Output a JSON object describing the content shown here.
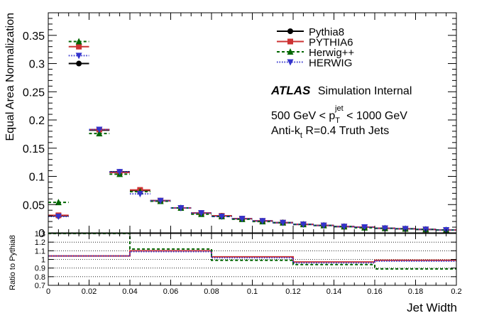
{
  "chart_data": [
    {
      "type": "scatter",
      "ylabel": "Equal Area Normalization",
      "xlim": [
        0,
        0.2
      ],
      "ylim": [
        0,
        0.39
      ],
      "x_bin_edges": [
        0,
        0.01,
        0.02,
        0.03,
        0.04,
        0.05,
        0.06,
        0.07,
        0.08,
        0.09,
        0.1,
        0.11,
        0.12,
        0.13,
        0.14,
        0.15,
        0.16,
        0.17,
        0.18,
        0.19,
        0.2
      ],
      "x_centers": [
        0.005,
        0.015,
        0.025,
        0.035,
        0.045,
        0.055,
        0.065,
        0.075,
        0.085,
        0.095,
        0.105,
        0.115,
        0.125,
        0.135,
        0.145,
        0.155,
        0.165,
        0.175,
        0.185,
        0.195
      ],
      "y_ticks": [
        0,
        0.05,
        0.1,
        0.15,
        0.2,
        0.25,
        0.3,
        0.35
      ],
      "y_tick_labels": [
        "0",
        "0.05",
        "0.1",
        "0.15",
        "0.2",
        "0.25",
        "0.3",
        "0.35"
      ],
      "legend_position": "top-right",
      "series": [
        {
          "name": "Pythia8",
          "color": "#000000",
          "marker": "circle",
          "line": "solid",
          "values": [
            0.03,
            0.3,
            0.182,
            0.108,
            0.075,
            0.057,
            0.044,
            0.035,
            0.03,
            0.025,
            0.021,
            0.018,
            0.015,
            0.013,
            0.011,
            0.01,
            0.008,
            0.007,
            0.006,
            0.005
          ]
        },
        {
          "name": "PYTHIA6",
          "color": "#cc3333",
          "marker": "square",
          "line": "solid",
          "values": [
            0.031,
            0.33,
            0.183,
            0.107,
            0.076,
            0.057,
            0.044,
            0.035,
            0.03,
            0.025,
            0.021,
            0.018,
            0.015,
            0.013,
            0.011,
            0.01,
            0.008,
            0.007,
            0.006,
            0.005
          ]
        },
        {
          "name": "Herwig++",
          "color": "#006600",
          "marker": "triangle-up",
          "line": "dashed",
          "values": [
            0.054,
            0.339,
            0.176,
            0.104,
            0.073,
            0.056,
            0.044,
            0.033,
            0.029,
            0.024,
            0.02,
            0.018,
            0.015,
            0.013,
            0.011,
            0.009,
            0.008,
            0.007,
            0.006,
            0.005
          ]
        },
        {
          "name": "HERWIG",
          "color": "#3333cc",
          "marker": "triangle-down",
          "line": "dotted",
          "values": [
            0.029,
            0.314,
            0.183,
            0.108,
            0.069,
            0.057,
            0.044,
            0.035,
            0.029,
            0.025,
            0.021,
            0.018,
            0.015,
            0.013,
            0.011,
            0.01,
            0.008,
            0.007,
            0.006,
            0.005
          ]
        }
      ],
      "annotations": {
        "atlas": "ATLAS",
        "atlas_suffix": "Simulation Internal",
        "range_prefix": "500 GeV < p",
        "range_sub": "T",
        "range_sup": "jet",
        "range_suffix": " < 1000 GeV",
        "algo_prefix": "Anti-k",
        "algo_sub": "t",
        "algo_suffix": " R=0.4 Truth Jets"
      }
    },
    {
      "type": "line",
      "ylabel": "Ratio to Pythia8",
      "xlabel": "Jet Width",
      "xlim": [
        0,
        0.2
      ],
      "ylim": [
        0.7,
        1.3
      ],
      "x_ticks": [
        0,
        0.02,
        0.04,
        0.06,
        0.08,
        0.1,
        0.12,
        0.14,
        0.16,
        0.18,
        0.2
      ],
      "x_tick_labels": [
        "0",
        "0.02",
        "0.04",
        "0.06",
        "0.08",
        "0.1",
        "0.12",
        "0.14",
        "0.16",
        "0.18",
        "0.2"
      ],
      "y_ticks": [
        0.7,
        0.8,
        0.9,
        1,
        1.1,
        1.2,
        1.3
      ],
      "y_tick_labels": [
        "0.7",
        "0.8",
        "0.9",
        "1",
        "1.1",
        "1.2",
        "1.3"
      ],
      "grid": "horizontal dotted",
      "bin_edges": [
        0,
        0.04,
        0.08,
        0.12,
        0.16,
        0.2
      ],
      "series": [
        {
          "name": "PYTHIA6",
          "color": "#cc3333",
          "line": "solid",
          "values": [
            1.04,
            1.1,
            1.03,
            0.97,
            0.99
          ]
        },
        {
          "name": "Herwig++",
          "color": "#006600",
          "line": "dashed",
          "values": [
            1.3,
            1.12,
            0.99,
            0.94,
            0.89
          ]
        },
        {
          "name": "HERWIG",
          "color": "#3333cc",
          "line": "dotted",
          "values": [
            1.04,
            1.09,
            1.02,
            0.96,
            0.98
          ]
        }
      ]
    }
  ]
}
